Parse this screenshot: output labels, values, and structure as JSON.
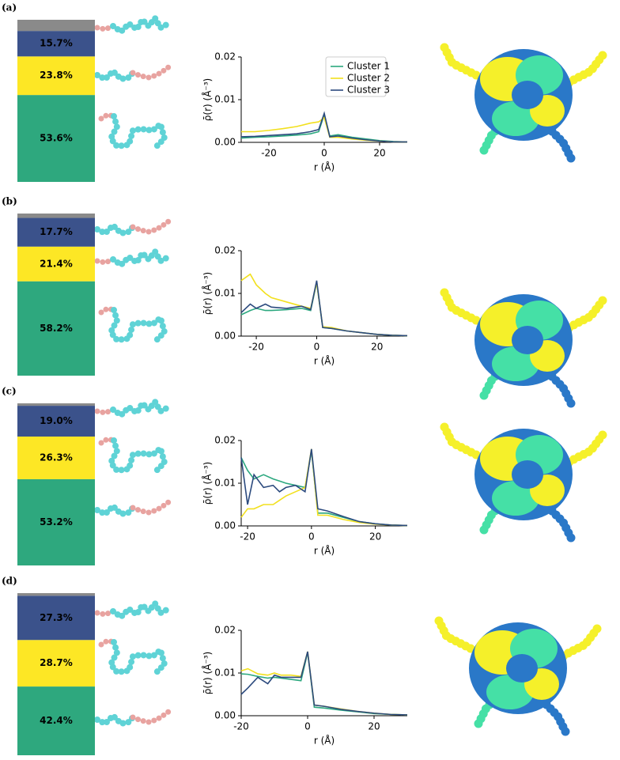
{
  "panel_labels": [
    "(a)",
    "(b)",
    "(c)",
    "(d)"
  ],
  "chart_data": [
    {
      "type": "stacked-bar",
      "values": [
        53.6,
        23.8,
        15.7,
        6.9
      ],
      "value_labels": [
        "53.6%",
        "23.8%",
        "15.7%",
        null
      ],
      "colors": [
        "#2ea87e",
        "#fde725",
        "#3b528b",
        "#8a8a8a"
      ],
      "ylim": [
        0,
        100
      ]
    },
    {
      "type": "line",
      "xlabel": "r (Å)",
      "ylabel": "ρ̄(r) (Å⁻³)",
      "xlim": [
        -30,
        30
      ],
      "xticks": [
        -20,
        0,
        20
      ],
      "ylim": [
        0,
        0.02
      ],
      "yticks": [
        {
          "value": 0,
          "label": "0.00"
        },
        {
          "value": 0.01,
          "label": "0.01"
        },
        {
          "value": 0.02,
          "label": "0.02"
        }
      ],
      "legend": "upper center",
      "x": [
        -30,
        -25,
        -20,
        -15,
        -10,
        -5,
        -2,
        0,
        2,
        5,
        10,
        15,
        20,
        25,
        30
      ],
      "series": [
        {
          "name": "Cluster 1",
          "color": "#2ca87f",
          "values": [
            0.001,
            0.0012,
            0.0013,
            0.0015,
            0.0017,
            0.002,
            0.0025,
            0.0065,
            0.0015,
            0.0018,
            0.0012,
            0.0008,
            0.0004,
            0.0002,
            0.0001
          ]
        },
        {
          "name": "Cluster 2",
          "color": "#f2e01e",
          "values": [
            0.0025,
            0.0025,
            0.0028,
            0.0032,
            0.0037,
            0.0045,
            0.0048,
            0.0058,
            0.0012,
            0.0012,
            0.0008,
            0.0005,
            0.0003,
            0.0001,
            0.0001
          ]
        },
        {
          "name": "Cluster 3",
          "color": "#2c4a7e",
          "values": [
            0.0013,
            0.0014,
            0.0016,
            0.0018,
            0.002,
            0.0025,
            0.003,
            0.0068,
            0.0013,
            0.0015,
            0.001,
            0.0006,
            0.0003,
            0.0001,
            0.0001
          ]
        }
      ]
    },
    {
      "type": "stacked-bar",
      "values": [
        58.2,
        21.4,
        17.7,
        2.7
      ],
      "value_labels": [
        "58.2%",
        "21.4%",
        "17.7%",
        null
      ],
      "colors": [
        "#2ea87e",
        "#fde725",
        "#3b528b",
        "#8a8a8a"
      ],
      "ylim": [
        0,
        100
      ]
    },
    {
      "type": "line",
      "xlabel": "r (Å)",
      "ylabel": "ρ̄(r) (Å⁻³)",
      "xlim": [
        -25,
        30
      ],
      "xticks": [
        -20,
        0,
        20
      ],
      "ylim": [
        0,
        0.02
      ],
      "yticks": [
        {
          "value": 0,
          "label": "0.00"
        },
        {
          "value": 0.01,
          "label": "0.01"
        },
        {
          "value": 0.02,
          "label": "0.02"
        }
      ],
      "x": [
        -25,
        -22,
        -20,
        -17,
        -15,
        -10,
        -5,
        -2,
        0,
        2,
        5,
        10,
        15,
        20,
        25,
        30
      ],
      "series": [
        {
          "name": "Cluster 1",
          "color": "#2ca87f",
          "values": [
            0.005,
            0.006,
            0.0065,
            0.006,
            0.006,
            0.0062,
            0.0065,
            0.006,
            0.0125,
            0.002,
            0.0018,
            0.0012,
            0.0008,
            0.0004,
            0.0002,
            0.0001
          ]
        },
        {
          "name": "Cluster 2",
          "color": "#f2e01e",
          "values": [
            0.013,
            0.0145,
            0.012,
            0.01,
            0.009,
            0.008,
            0.007,
            0.0065,
            0.0125,
            0.0022,
            0.002,
            0.0012,
            0.0008,
            0.0004,
            0.0002,
            0.0001
          ]
        },
        {
          "name": "Cluster 3",
          "color": "#2c4a7e",
          "values": [
            0.0055,
            0.0075,
            0.0065,
            0.0075,
            0.0068,
            0.0065,
            0.007,
            0.0062,
            0.013,
            0.002,
            0.0018,
            0.0012,
            0.0008,
            0.0004,
            0.0002,
            0.0001
          ]
        }
      ]
    },
    {
      "type": "stacked-bar",
      "values": [
        53.2,
        26.3,
        19.0,
        1.5
      ],
      "value_labels": [
        "53.2%",
        "26.3%",
        "19.0%",
        null
      ],
      "colors": [
        "#2ea87e",
        "#fde725",
        "#3b528b",
        "#8a8a8a"
      ],
      "ylim": [
        0,
        100
      ]
    },
    {
      "type": "line",
      "xlabel": "r (Å)",
      "ylabel": "ρ̄(r) (Å⁻³)",
      "xlim": [
        -22,
        30
      ],
      "xticks": [
        -20,
        0,
        20
      ],
      "ylim": [
        0,
        0.02
      ],
      "yticks": [
        {
          "value": 0,
          "label": "0.00"
        },
        {
          "value": 0.01,
          "label": "0.01"
        },
        {
          "value": 0.02,
          "label": "0.02"
        }
      ],
      "x": [
        -22,
        -20,
        -18,
        -15,
        -12,
        -10,
        -8,
        -5,
        -2,
        0,
        2,
        5,
        10,
        15,
        20,
        25,
        30
      ],
      "series": [
        {
          "name": "Cluster 1",
          "color": "#2ca87f",
          "values": [
            0.016,
            0.013,
            0.011,
            0.012,
            0.011,
            0.0105,
            0.01,
            0.0095,
            0.009,
            0.0175,
            0.003,
            0.003,
            0.002,
            0.001,
            0.0005,
            0.0002,
            0.0001
          ]
        },
        {
          "name": "Cluster 2",
          "color": "#f2e01e",
          "values": [
            0.002,
            0.004,
            0.004,
            0.005,
            0.005,
            0.006,
            0.007,
            0.008,
            0.009,
            0.018,
            0.0025,
            0.0025,
            0.0015,
            0.0008,
            0.0004,
            0.0002,
            0.0001
          ]
        },
        {
          "name": "Cluster 3",
          "color": "#2c4a7e",
          "values": [
            0.016,
            0.005,
            0.012,
            0.009,
            0.0095,
            0.008,
            0.009,
            0.0095,
            0.008,
            0.018,
            0.004,
            0.0035,
            0.0022,
            0.001,
            0.0005,
            0.0002,
            0.0001
          ]
        }
      ]
    },
    {
      "type": "stacked-bar",
      "values": [
        42.4,
        28.7,
        27.3,
        1.6
      ],
      "value_labels": [
        "42.4%",
        "28.7%",
        "27.3%",
        null
      ],
      "colors": [
        "#2ea87e",
        "#fde725",
        "#3b528b",
        "#8a8a8a"
      ],
      "ylim": [
        0,
        100
      ]
    },
    {
      "type": "line",
      "xlabel": "r (Å)",
      "ylabel": "ρ̄(r) (Å⁻³)",
      "xlim": [
        -20,
        30
      ],
      "xticks": [
        -20,
        0,
        20
      ],
      "ylim": [
        0,
        0.02
      ],
      "yticks": [
        {
          "value": 0,
          "label": "0.00"
        },
        {
          "value": 0.01,
          "label": "0.01"
        },
        {
          "value": 0.02,
          "label": "0.02"
        }
      ],
      "x": [
        -20,
        -18,
        -15,
        -12,
        -10,
        -8,
        -5,
        -2,
        0,
        2,
        5,
        10,
        15,
        20,
        25,
        30
      ],
      "series": [
        {
          "name": "Cluster 1",
          "color": "#2ca87f",
          "values": [
            0.0098,
            0.0097,
            0.0092,
            0.0088,
            0.009,
            0.0088,
            0.0085,
            0.0082,
            0.0148,
            0.002,
            0.0018,
            0.0013,
            0.0009,
            0.0005,
            0.0003,
            0.0002
          ]
        },
        {
          "name": "Cluster 2",
          "color": "#f2e01e",
          "values": [
            0.0105,
            0.011,
            0.0098,
            0.0095,
            0.01,
            0.0095,
            0.0095,
            0.0092,
            0.015,
            0.0025,
            0.0022,
            0.0016,
            0.001,
            0.0006,
            0.0003,
            0.0002
          ]
        },
        {
          "name": "Cluster 3",
          "color": "#2c4a7e",
          "values": [
            0.005,
            0.0065,
            0.009,
            0.0075,
            0.0095,
            0.009,
            0.009,
            0.009,
            0.015,
            0.0025,
            0.0022,
            0.0015,
            0.001,
            0.0006,
            0.0003,
            0.0002
          ]
        }
      ]
    }
  ]
}
